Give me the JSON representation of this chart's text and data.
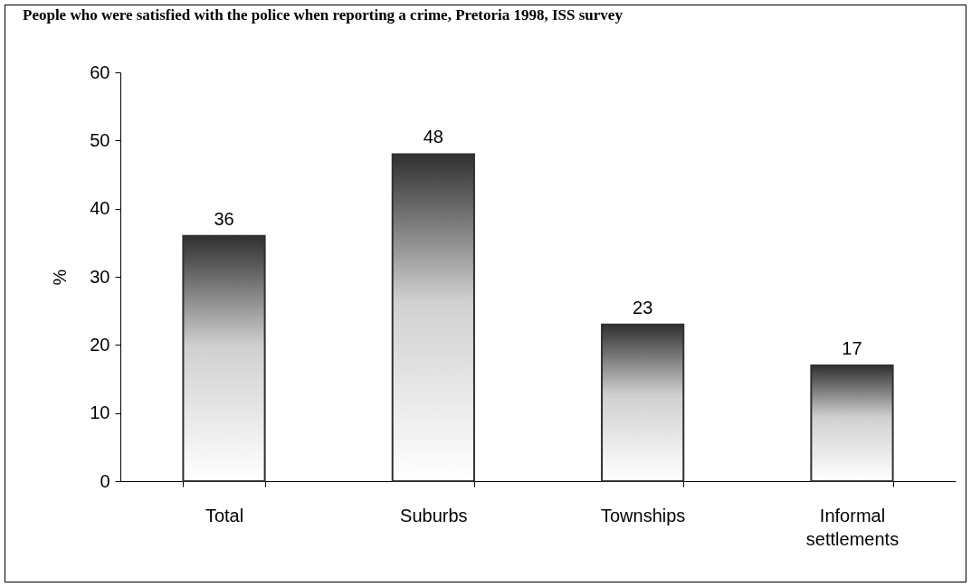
{
  "chart_data": {
    "type": "bar",
    "title": "People who were satisfied with the police when reporting a crime, Pretoria 1998, ISS survey",
    "ylabel": "%",
    "categories": [
      "Total",
      "Suburbs",
      "Townships",
      "Informal settlements"
    ],
    "values": [
      36,
      48,
      23,
      17
    ],
    "color": "#303030",
    "ylim": [
      0,
      60
    ],
    "yticks": [
      0,
      10,
      20,
      30,
      40,
      50,
      60
    ],
    "grid": false,
    "data_labels": true
  }
}
